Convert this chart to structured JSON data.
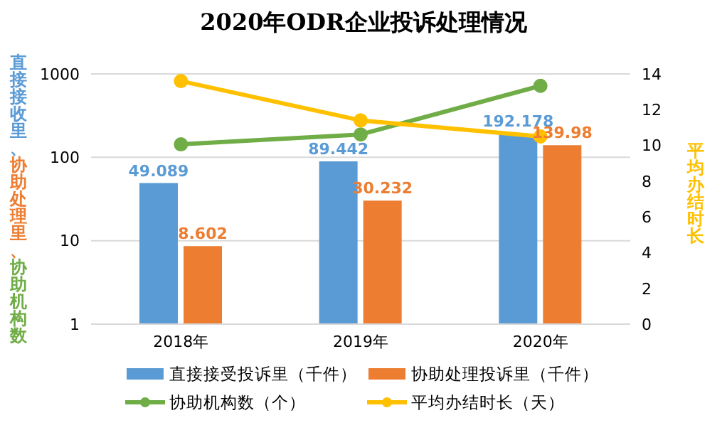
{
  "chart_data": {
    "type": "bar",
    "title": "2020年ODR企业投诉处理情况",
    "categories": [
      "2018年",
      "2019年",
      "2020年"
    ],
    "series": [
      {
        "name": "直接接受投诉里（千件）",
        "color": "#5b9bd5",
        "values": [
          49.089,
          89.442,
          192.178
        ],
        "value_labels": [
          "49.089",
          "89.442",
          "192.178"
        ]
      },
      {
        "name": "协助处理投诉里（千件）",
        "color": "#ed7d31",
        "values": [
          8.602,
          30.232,
          139.98
        ],
        "value_labels": [
          "8.602",
          "30.232",
          "139.98"
        ]
      },
      {
        "name": "协助机构数（个）",
        "type": "line",
        "color": "#70ad47",
        "values": [
          143,
          188,
          720
        ]
      },
      {
        "name": "平均办结时长（天）",
        "type": "line",
        "color": "#ffc000",
        "axis": "y2",
        "values": [
          13.6,
          11.4,
          10.5
        ]
      }
    ],
    "ylabel": "直接接收里、协助处理里、协助机构数",
    "y2label": "平均办结时长",
    "log": "y",
    "ylim": [
      1,
      1000
    ],
    "yticks": [
      1,
      10,
      100,
      1000
    ],
    "y2lim": [
      0,
      14
    ],
    "y2ticks": [
      0,
      2,
      4,
      6,
      8,
      10,
      12,
      14
    ],
    "grid": "y",
    "legend": "bottom",
    "marker": "circle"
  }
}
